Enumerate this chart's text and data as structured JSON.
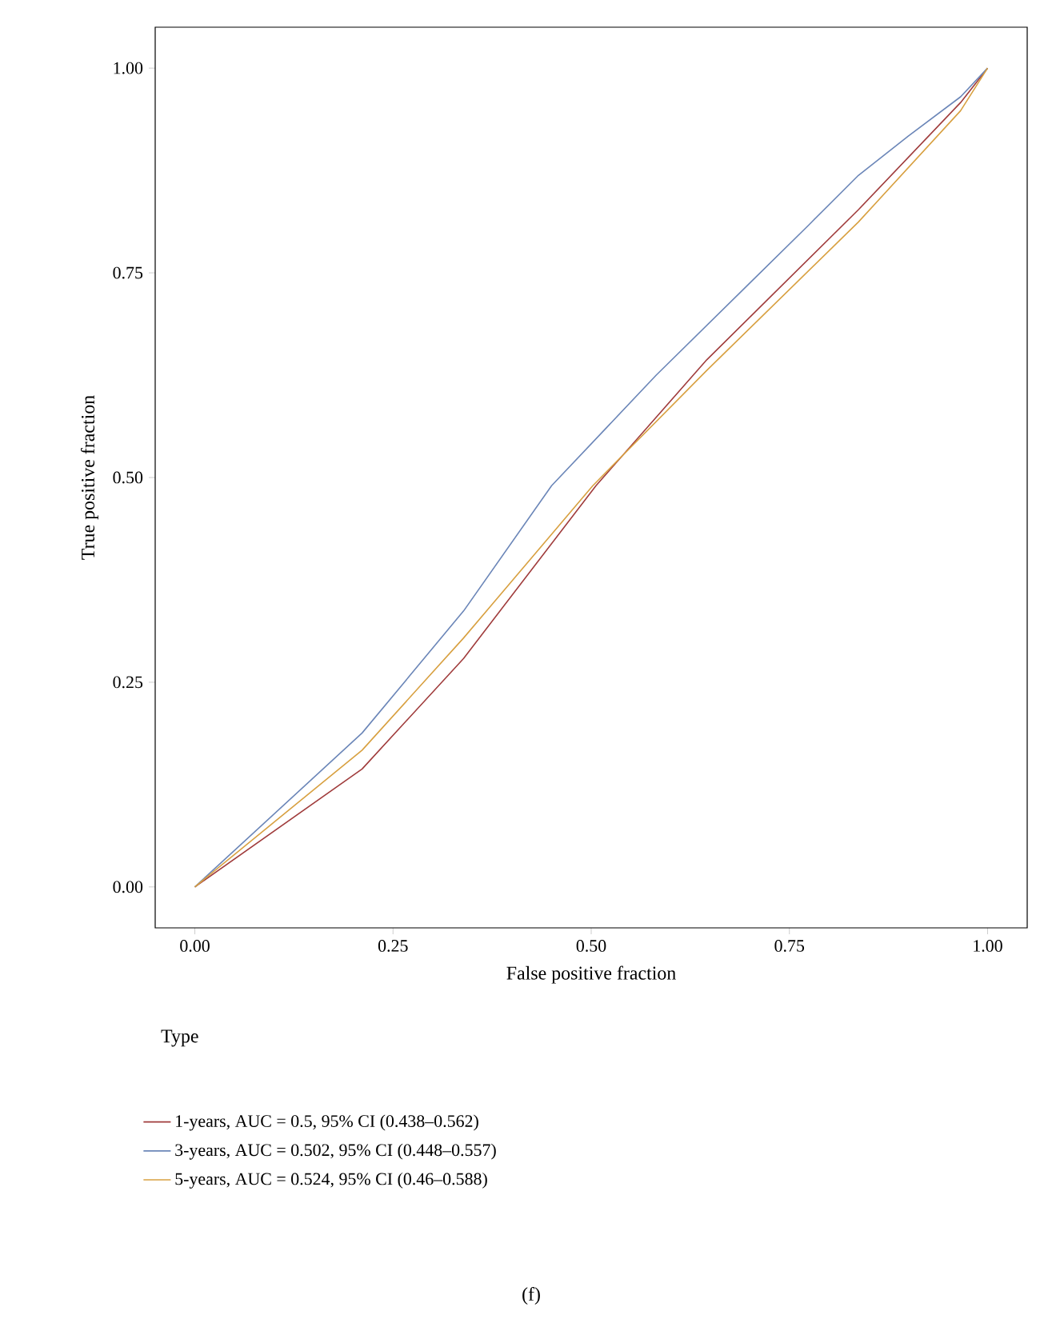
{
  "chart_data": {
    "type": "line",
    "xlabel": "False positive fraction",
    "ylabel": "True positive fraction",
    "legend_title": "Type",
    "legend": "bottom",
    "grid": false,
    "marker": "none",
    "line_style": "solid",
    "xlim": [
      -0.05,
      1.05
    ],
    "ylim": [
      -0.05,
      1.05
    ],
    "xticks": [
      {
        "value": 0,
        "label": "0.00"
      },
      {
        "value": 0.25,
        "label": "0.25"
      },
      {
        "value": 0.5,
        "label": "0.50"
      },
      {
        "value": 0.75,
        "label": "0.75"
      },
      {
        "value": 1,
        "label": "1.00"
      }
    ],
    "yticks": [
      {
        "value": 0,
        "label": "0.00"
      },
      {
        "value": 0.25,
        "label": "0.25"
      },
      {
        "value": 0.5,
        "label": "0.50"
      },
      {
        "value": 0.75,
        "label": "0.75"
      },
      {
        "value": 1,
        "label": "1.00"
      }
    ],
    "series": [
      {
        "name": "1-years, AUC = 0.5, 95% CI (0.438–0.562)",
        "color": "#a03c3c",
        "x": [
          0,
          0.211,
          0.339,
          0.506,
          0.646,
          0.837,
          0.966,
          1
        ],
        "values": [
          0,
          0.144,
          0.279,
          0.49,
          0.644,
          0.827,
          0.958,
          1
        ]
      },
      {
        "name": "3-years, AUC = 0.502, 95% CI (0.448–0.557)",
        "color": "#6b86b8",
        "x": [
          0,
          0.211,
          0.339,
          0.45,
          0.582,
          0.709,
          0.774,
          0.837,
          0.9,
          0.966,
          1
        ],
        "values": [
          0,
          0.188,
          0.337,
          0.49,
          0.625,
          0.746,
          0.808,
          0.869,
          0.917,
          0.965,
          1
        ]
      },
      {
        "name": "5-years, AUC = 0.524, 95% CI (0.46–0.588)",
        "color": "#d8a040",
        "x": [
          0,
          0.211,
          0.339,
          0.502,
          0.646,
          0.837,
          0.966,
          1
        ],
        "values": [
          0,
          0.167,
          0.304,
          0.49,
          0.631,
          0.812,
          0.948,
          1
        ]
      }
    ],
    "annotations": [
      "(f)"
    ]
  }
}
